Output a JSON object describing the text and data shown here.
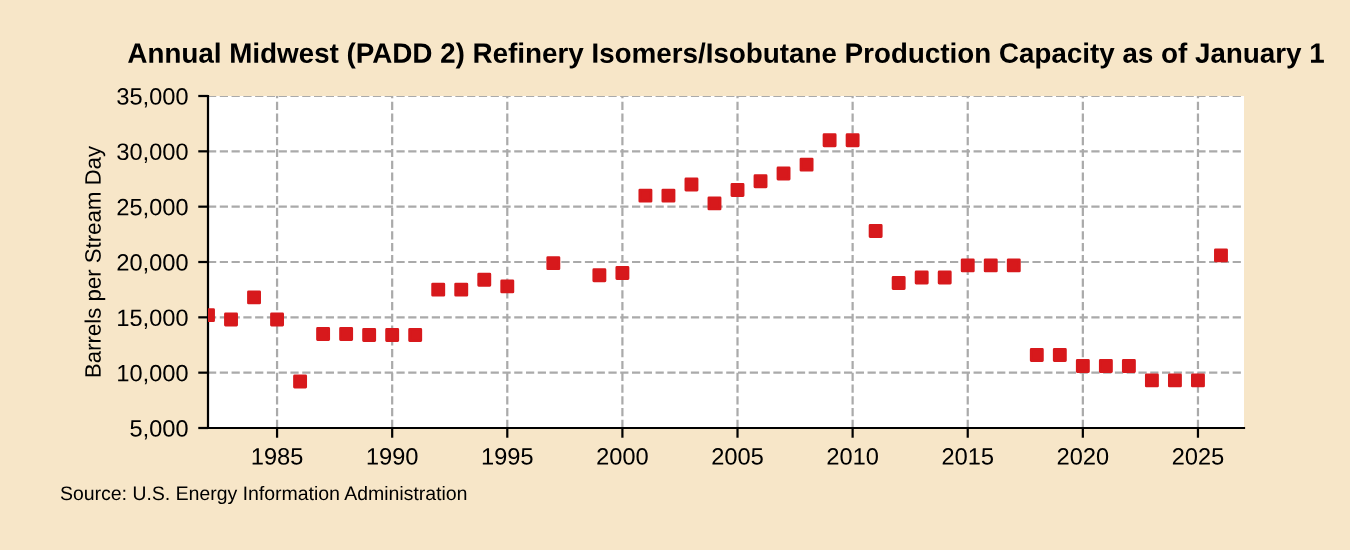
{
  "chart_data": {
    "type": "scatter",
    "title": "Annual Midwest (PADD 2) Refinery Isomers/Isobutane Production Capacity as of January 1",
    "ylabel": "Barrels per Stream Day",
    "x": [
      1982,
      1983,
      1984,
      1985,
      1986,
      1987,
      1988,
      1989,
      1990,
      1991,
      1992,
      1993,
      1994,
      1995,
      1997,
      1999,
      2000,
      2001,
      2002,
      2003,
      2004,
      2005,
      2006,
      2007,
      2008,
      2009,
      2010,
      2011,
      2012,
      2013,
      2014,
      2015,
      2016,
      2017,
      2018,
      2019,
      2020,
      2021,
      2022,
      2023,
      2024,
      2025,
      2026
    ],
    "series": [
      {
        "color": "#d7191c",
        "values": [
          15200,
          14800,
          16800,
          14800,
          9200,
          13500,
          13500,
          13400,
          13400,
          13400,
          17500,
          17500,
          18400,
          17800,
          19900,
          18800,
          19000,
          26000,
          26000,
          27000,
          25300,
          26500,
          27300,
          28000,
          28800,
          31000,
          31000,
          22800,
          18100,
          18600,
          18600,
          19700,
          19700,
          19700,
          11600,
          11600,
          10600,
          10600,
          10600,
          9300,
          9300,
          9300,
          20600
        ]
      }
    ],
    "xlim": [
      1982,
      2027
    ],
    "xticks": [
      1985,
      1990,
      1995,
      2000,
      2005,
      2010,
      2015,
      2020,
      2025
    ],
    "ylim": [
      5000,
      35000
    ],
    "yticks": [
      {
        "value": 5000,
        "label": "5,000"
      },
      {
        "value": 10000,
        "label": "10,000"
      },
      {
        "value": 15000,
        "label": "15,000"
      },
      {
        "value": 20000,
        "label": "20,000"
      },
      {
        "value": 25000,
        "label": "25,000"
      },
      {
        "value": 30000,
        "label": "30,000"
      },
      {
        "value": 35000,
        "label": "35,000"
      }
    ],
    "grid": true,
    "marker": "square",
    "legend": false,
    "annotations": [
      "Source: U.S. Energy Information Administration"
    ]
  }
}
